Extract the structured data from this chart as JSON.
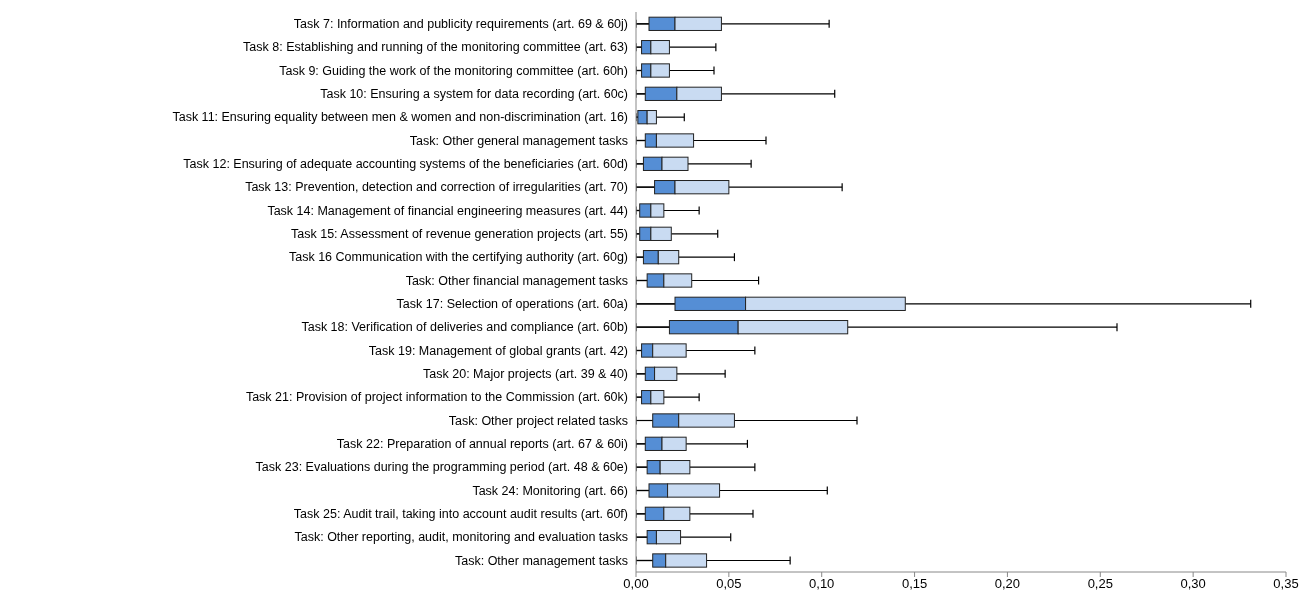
{
  "chart_data": {
    "type": "box",
    "orientation": "horizontal",
    "categories": [
      "Task 7: Information and publicity requirements (art. 69 & 60j)",
      "Task 8: Establishing and running of the monitoring committee (art. 63)",
      "Task 9: Guiding the work of the monitoring committee (art. 60h)",
      "Task 10: Ensuring a system for data recording (art. 60c)",
      "Task 11: Ensuring equality between men & women and non-discrimination (art. 16)",
      "Task: Other general management tasks",
      "Task 12: Ensuring of adequate accounting systems of the beneficiaries (art. 60d)",
      "Task 13: Prevention, detection and correction of irregularities (art. 70)",
      "Task 14: Management of financial engineering measures (art. 44)",
      "Task 15: Assessment of revenue generation projects (art. 55)",
      "Task 16 Communication with the certifying authority (art. 60g)",
      "Task: Other financial management tasks",
      "Task 17: Selection of operations (art. 60a)",
      "Task 18: Verification of deliveries and compliance (art. 60b)",
      "Task 19: Management of global grants (art. 42)",
      "Task 20: Major projects (art. 39 & 40)",
      "Task 21: Provision of project information to the Commission (art. 60k)",
      "Task: Other project related tasks",
      "Task 22: Preparation of annual reports (art. 67 & 60i)",
      "Task 23: Evaluations during the programming period (art. 48 & 60e)",
      "Task 24: Monitoring (art. 66)",
      "Task 25: Audit trail, taking into account audit results (art. 60f)",
      "Task: Other reporting, audit, monitoring and evaluation tasks",
      "Task: Other management tasks"
    ],
    "series": [
      {
        "color": "#558ed5",
        "boxes": [
          {
            "low": 0,
            "q1": 0.007,
            "median": 0.021,
            "q3": 0.046,
            "high": 0.104
          },
          {
            "low": 0,
            "q1": 0.003,
            "median": 0.008,
            "q3": 0.018,
            "high": 0.043
          },
          {
            "low": 0,
            "q1": 0.003,
            "median": 0.008,
            "q3": 0.018,
            "high": 0.042
          },
          {
            "low": 0,
            "q1": 0.005,
            "median": 0.022,
            "q3": 0.046,
            "high": 0.107
          },
          {
            "low": 0,
            "q1": 0.001,
            "median": 0.006,
            "q3": 0.011,
            "high": 0.026
          },
          {
            "low": 0,
            "q1": 0.005,
            "median": 0.011,
            "q3": 0.031,
            "high": 0.07
          },
          {
            "low": 0,
            "q1": 0.004,
            "median": 0.014,
            "q3": 0.028,
            "high": 0.062
          },
          {
            "low": 0,
            "q1": 0.01,
            "median": 0.021,
            "q3": 0.05,
            "high": 0.111
          },
          {
            "low": 0,
            "q1": 0.002,
            "median": 0.008,
            "q3": 0.015,
            "high": 0.034
          },
          {
            "low": 0,
            "q1": 0.002,
            "median": 0.008,
            "q3": 0.019,
            "high": 0.044
          },
          {
            "low": 0,
            "q1": 0.004,
            "median": 0.012,
            "q3": 0.023,
            "high": 0.053
          },
          {
            "low": 0,
            "q1": 0.006,
            "median": 0.015,
            "q3": 0.03,
            "high": 0.066
          },
          {
            "low": 0,
            "q1": 0.021,
            "median": 0.059,
            "q3": 0.145,
            "high": 0.331
          },
          {
            "low": 0,
            "q1": 0.018,
            "median": 0.055,
            "q3": 0.114,
            "high": 0.259
          },
          {
            "low": 0,
            "q1": 0.003,
            "median": 0.009,
            "q3": 0.027,
            "high": 0.064
          },
          {
            "low": 0,
            "q1": 0.005,
            "median": 0.01,
            "q3": 0.022,
            "high": 0.048
          },
          {
            "low": 0,
            "q1": 0.003,
            "median": 0.008,
            "q3": 0.015,
            "high": 0.034
          },
          {
            "low": 0,
            "q1": 0.009,
            "median": 0.023,
            "q3": 0.053,
            "high": 0.119
          },
          {
            "low": 0,
            "q1": 0.005,
            "median": 0.014,
            "q3": 0.027,
            "high": 0.06
          },
          {
            "low": 0,
            "q1": 0.006,
            "median": 0.013,
            "q3": 0.029,
            "high": 0.064
          },
          {
            "low": 0,
            "q1": 0.007,
            "median": 0.017,
            "q3": 0.045,
            "high": 0.103
          },
          {
            "low": 0,
            "q1": 0.005,
            "median": 0.015,
            "q3": 0.029,
            "high": 0.063
          },
          {
            "low": 0,
            "q1": 0.006,
            "median": 0.011,
            "q3": 0.024,
            "high": 0.051
          },
          {
            "low": 0,
            "q1": 0.009,
            "median": 0.016,
            "q3": 0.038,
            "high": 0.083
          }
        ]
      }
    ],
    "xlim": [
      0,
      0.35
    ],
    "xticks": [
      {
        "value": 0,
        "label": "0,00"
      },
      {
        "value": 0.05,
        "label": "0,05"
      },
      {
        "value": 0.1,
        "label": "0,10"
      },
      {
        "value": 0.15,
        "label": "0,15"
      },
      {
        "value": 0.2,
        "label": "0,20"
      },
      {
        "value": 0.25,
        "label": "0,25"
      },
      {
        "value": 0.3,
        "label": "0,30"
      },
      {
        "value": 0.35,
        "label": "0,35"
      }
    ],
    "grid": false,
    "legend": false
  }
}
